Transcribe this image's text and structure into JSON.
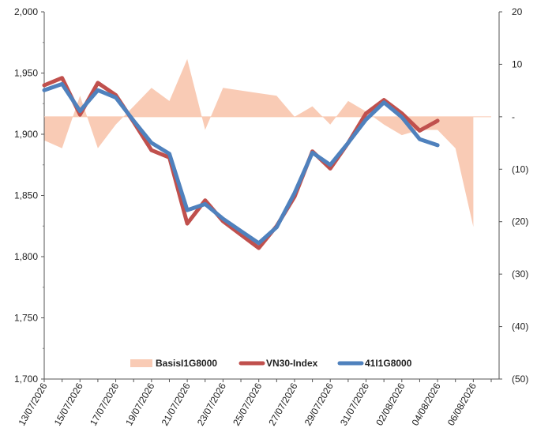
{
  "chart_data": {
    "type": "line",
    "x": [
      "13/07/2026",
      "14/07/2026",
      "15/07/2026",
      "16/07/2026",
      "17/07/2026",
      "18/07/2026",
      "19/07/2026",
      "20/07/2026",
      "21/07/2026",
      "22/07/2026",
      "23/07/2026",
      "24/07/2026",
      "25/07/2026",
      "26/07/2026",
      "27/07/2026",
      "28/07/2026",
      "29/07/2026",
      "30/07/2026",
      "31/07/2026",
      "01/08/2026",
      "02/08/2026",
      "03/08/2026",
      "04/08/2026",
      "05/08/2026",
      "06/08/2026",
      "07/08/2026"
    ],
    "x_tick_labels": [
      "13/07/2026",
      "15/07/2026",
      "17/07/2026",
      "19/07/2026",
      "21/07/2026",
      "23/07/2026",
      "25/07/2026",
      "27/07/2026",
      "29/07/2026",
      "31/07/2026",
      "02/08/2026",
      "04/08/2026",
      "06/08/2026"
    ],
    "series": [
      {
        "name": "BasisI1G8000",
        "type": "area",
        "axis": "right",
        "color": "#f9cbb5",
        "values": [
          -4.5,
          -6,
          4,
          -6,
          -1.5,
          2,
          5.5,
          3,
          11,
          -2.5,
          5.5,
          5,
          4.5,
          4,
          0,
          2,
          -1.5,
          3,
          1,
          -1.5,
          -3.5,
          -2.5,
          -2.5,
          -6,
          -21,
          null
        ]
      },
      {
        "name": "VN30-Index",
        "type": "line",
        "axis": "left",
        "color": "#c0504d",
        "values": [
          1940,
          1946,
          1916,
          1942,
          1932,
          1910,
          1887,
          1881,
          1827,
          1846,
          1829,
          1818,
          1807,
          1825,
          1849,
          1886,
          1872,
          1893,
          1917,
          1928,
          1917,
          1903,
          1911,
          null,
          null,
          null
        ]
      },
      {
        "name": "41I1G8000",
        "type": "line",
        "axis": "left",
        "color": "#4f81bd",
        "values": [
          1936,
          1941,
          1919,
          1936,
          1930,
          1911,
          1893,
          1884,
          1838,
          1843,
          1831,
          1821,
          1811,
          1824,
          1852,
          1885,
          1875,
          1893,
          1912,
          1926,
          1914,
          1896,
          1891,
          null,
          null,
          null
        ]
      }
    ],
    "left_axis": {
      "min": 1700,
      "max": 2000,
      "step": 50,
      "tick_labels": [
        "1,700",
        "1,750",
        "1,800",
        "1,850",
        "1,900",
        "1,950",
        "2,000"
      ]
    },
    "right_axis": {
      "min": -50,
      "max": 20,
      "step": 10,
      "tick_labels": [
        "(50)",
        "(40)",
        "(30)",
        "(20)",
        "(10)",
        "-",
        "10",
        "20"
      ]
    },
    "legend": {
      "placement": "bottom-center",
      "items": [
        "BasisI1G8000",
        "VN30-Index",
        "41I1G8000"
      ]
    },
    "grid": false
  }
}
